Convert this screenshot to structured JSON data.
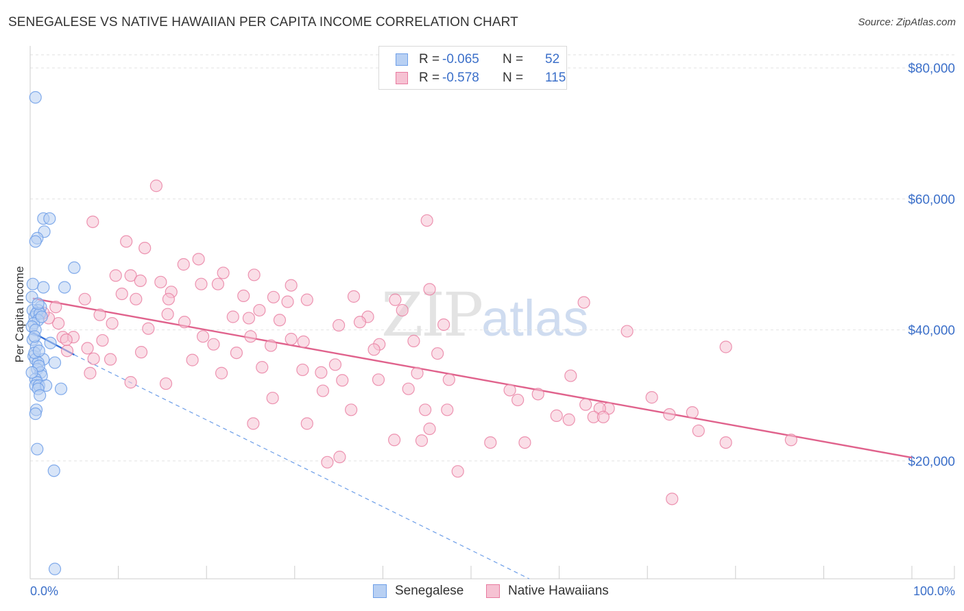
{
  "title": "SENEGALESE VS NATIVE HAWAIIAN PER CAPITA INCOME CORRELATION CHART",
  "source": "Source: ZipAtlas.com",
  "watermark": {
    "zip": "ZIP",
    "atlas": "atlas"
  },
  "colors": {
    "blue": "#6d9ee8",
    "blue_fill": "#b8d0f3",
    "pink": "#e87a9f",
    "pink_fill": "#f6c2d3",
    "axis_text": "#3b6fc9"
  },
  "legend": {
    "rows": [
      {
        "r_label": "R =",
        "r_value": "-0.065",
        "n_label": "N =",
        "n_value": "52"
      },
      {
        "r_label": "R =",
        "r_value": "-0.578",
        "n_label": "N =",
        "n_value": "115"
      }
    ]
  },
  "bottom_legend": {
    "series1": "Senegalese",
    "series2": "Native Hawaiians"
  },
  "chart_data": {
    "type": "scatter",
    "title": "SENEGALESE VS NATIVE HAWAIIAN PER CAPITA INCOME CORRELATION CHART",
    "xlabel": "",
    "ylabel": "Per Capita Income",
    "xlim": [
      0,
      100
    ],
    "ylim": [
      2000,
      82000
    ],
    "x_tick_labels": [
      "0.0%",
      "100.0%"
    ],
    "y_ticks": [
      20000,
      40000,
      60000,
      80000
    ],
    "y_tick_labels": [
      "$20,000",
      "$40,000",
      "$60,000",
      "$80,000"
    ],
    "series": [
      {
        "name": "Senegalese",
        "r": -0.065,
        "n": 52,
        "trend_solid": {
          "x": [
            0,
            5
          ],
          "y": [
            39800,
            36200
          ]
        },
        "trend_dashed": {
          "x": [
            5,
            56.6
          ],
          "y": [
            36200,
            2000
          ]
        },
        "points": [
          [
            0.6,
            75500
          ],
          [
            0.3,
            47000
          ],
          [
            0.2,
            45000
          ],
          [
            1.5,
            57000
          ],
          [
            2.2,
            57000
          ],
          [
            1.6,
            55000
          ],
          [
            0.8,
            54000
          ],
          [
            0.6,
            53500
          ],
          [
            5,
            49500
          ],
          [
            1.5,
            46500
          ],
          [
            3.9,
            46500
          ],
          [
            1.2,
            43500
          ],
          [
            0.9,
            43000
          ],
          [
            0.3,
            43000
          ],
          [
            0.5,
            42000
          ],
          [
            0.7,
            42500
          ],
          [
            1.1,
            42500
          ],
          [
            0.9,
            41500
          ],
          [
            0.4,
            41000
          ],
          [
            0.2,
            40500
          ],
          [
            0.6,
            40000
          ],
          [
            0.3,
            38500
          ],
          [
            2.3,
            38000
          ],
          [
            0.7,
            37500
          ],
          [
            0.4,
            36000
          ],
          [
            0.6,
            35500
          ],
          [
            1.5,
            35500
          ],
          [
            0.9,
            35000
          ],
          [
            2.8,
            35000
          ],
          [
            0.8,
            34000
          ],
          [
            1.2,
            33500
          ],
          [
            1.3,
            33000
          ],
          [
            0.6,
            32500
          ],
          [
            0.8,
            32000
          ],
          [
            0.6,
            31500
          ],
          [
            1.0,
            31500
          ],
          [
            1.8,
            31500
          ],
          [
            3.5,
            31000
          ],
          [
            0.9,
            31000
          ],
          [
            1.1,
            30000
          ],
          [
            0.7,
            27800
          ],
          [
            0.6,
            27200
          ],
          [
            0.8,
            21800
          ],
          [
            2.7,
            18500
          ],
          [
            2.8,
            3500
          ],
          [
            0.5,
            36500
          ],
          [
            1.0,
            36800
          ],
          [
            0.9,
            44000
          ],
          [
            1.3,
            42000
          ],
          [
            0.5,
            39000
          ],
          [
            1.0,
            34500
          ],
          [
            0.2,
            33500
          ]
        ]
      },
      {
        "name": "Native Hawaiians",
        "r": -0.578,
        "n": 115,
        "trend": {
          "x": [
            0.3,
            100
          ],
          "y": [
            44800,
            20500
          ]
        },
        "points": [
          [
            14.3,
            62000
          ],
          [
            45,
            56700
          ],
          [
            7.1,
            56500
          ],
          [
            10.9,
            53500
          ],
          [
            13,
            52500
          ],
          [
            19.1,
            50800
          ],
          [
            17.4,
            50000
          ],
          [
            21.9,
            48700
          ],
          [
            25.4,
            48400
          ],
          [
            9.7,
            48300
          ],
          [
            11.4,
            48300
          ],
          [
            12.5,
            47500
          ],
          [
            14.8,
            47300
          ],
          [
            19.4,
            47000
          ],
          [
            21.3,
            47000
          ],
          [
            29.6,
            46800
          ],
          [
            45.3,
            46200
          ],
          [
            16,
            45800
          ],
          [
            10.4,
            45500
          ],
          [
            24.2,
            45200
          ],
          [
            36.7,
            45100
          ],
          [
            27.6,
            45000
          ],
          [
            6.2,
            44700
          ],
          [
            12,
            44700
          ],
          [
            15.7,
            44700
          ],
          [
            31.4,
            44600
          ],
          [
            41.4,
            44600
          ],
          [
            29.2,
            44300
          ],
          [
            62.8,
            44200
          ],
          [
            2.9,
            43500
          ],
          [
            26,
            43000
          ],
          [
            42.2,
            43000
          ],
          [
            15.6,
            42400
          ],
          [
            7.9,
            42300
          ],
          [
            23,
            42000
          ],
          [
            38.3,
            42000
          ],
          [
            24.8,
            41800
          ],
          [
            17.5,
            41200
          ],
          [
            28.3,
            41500
          ],
          [
            37.4,
            41200
          ],
          [
            9.3,
            41000
          ],
          [
            3.2,
            41000
          ],
          [
            46.9,
            40800
          ],
          [
            13.4,
            40200
          ],
          [
            35,
            40700
          ],
          [
            67.7,
            39800
          ],
          [
            19.6,
            39000
          ],
          [
            25,
            39000
          ],
          [
            3.7,
            38900
          ],
          [
            4.9,
            38900
          ],
          [
            29.6,
            38600
          ],
          [
            43.5,
            38300
          ],
          [
            8.2,
            38400
          ],
          [
            31,
            38200
          ],
          [
            39.6,
            37800
          ],
          [
            20.8,
            37800
          ],
          [
            27.3,
            37600
          ],
          [
            78.9,
            37400
          ],
          [
            6.5,
            37200
          ],
          [
            39,
            37000
          ],
          [
            4.2,
            36800
          ],
          [
            23.4,
            36500
          ],
          [
            46.2,
            36400
          ],
          [
            7.2,
            35600
          ],
          [
            18.4,
            35400
          ],
          [
            34.6,
            34700
          ],
          [
            26.3,
            34300
          ],
          [
            30.9,
            33900
          ],
          [
            33,
            33500
          ],
          [
            43.9,
            33400
          ],
          [
            6.8,
            33400
          ],
          [
            21.7,
            33400
          ],
          [
            61.3,
            33000
          ],
          [
            39.5,
            32400
          ],
          [
            47.5,
            32400
          ],
          [
            35.4,
            32300
          ],
          [
            11.4,
            32000
          ],
          [
            15.4,
            31800
          ],
          [
            42.9,
            31000
          ],
          [
            33.2,
            30700
          ],
          [
            54.4,
            30800
          ],
          [
            57.6,
            30200
          ],
          [
            27.5,
            29600
          ],
          [
            70.5,
            29700
          ],
          [
            55.3,
            29300
          ],
          [
            63,
            28600
          ],
          [
            65.6,
            28000
          ],
          [
            59.7,
            26900
          ],
          [
            44.8,
            27800
          ],
          [
            47.3,
            27800
          ],
          [
            36.4,
            27800
          ],
          [
            64.6,
            28000
          ],
          [
            63.9,
            26700
          ],
          [
            65,
            26700
          ],
          [
            61.1,
            26300
          ],
          [
            72.5,
            27100
          ],
          [
            75.1,
            27400
          ],
          [
            25.3,
            25700
          ],
          [
            31.4,
            25700
          ],
          [
            45.3,
            24900
          ],
          [
            75.8,
            24600
          ],
          [
            41.3,
            23200
          ],
          [
            44.4,
            23100
          ],
          [
            52.2,
            22800
          ],
          [
            56.1,
            22800
          ],
          [
            86.3,
            23200
          ],
          [
            78.9,
            22800
          ],
          [
            35.1,
            20600
          ],
          [
            33.7,
            19800
          ],
          [
            48.5,
            18400
          ],
          [
            72.8,
            14200
          ],
          [
            4.1,
            38500
          ],
          [
            2.1,
            41800
          ],
          [
            1.5,
            42600
          ],
          [
            9.1,
            35500
          ],
          [
            12.6,
            36600
          ]
        ]
      }
    ]
  }
}
